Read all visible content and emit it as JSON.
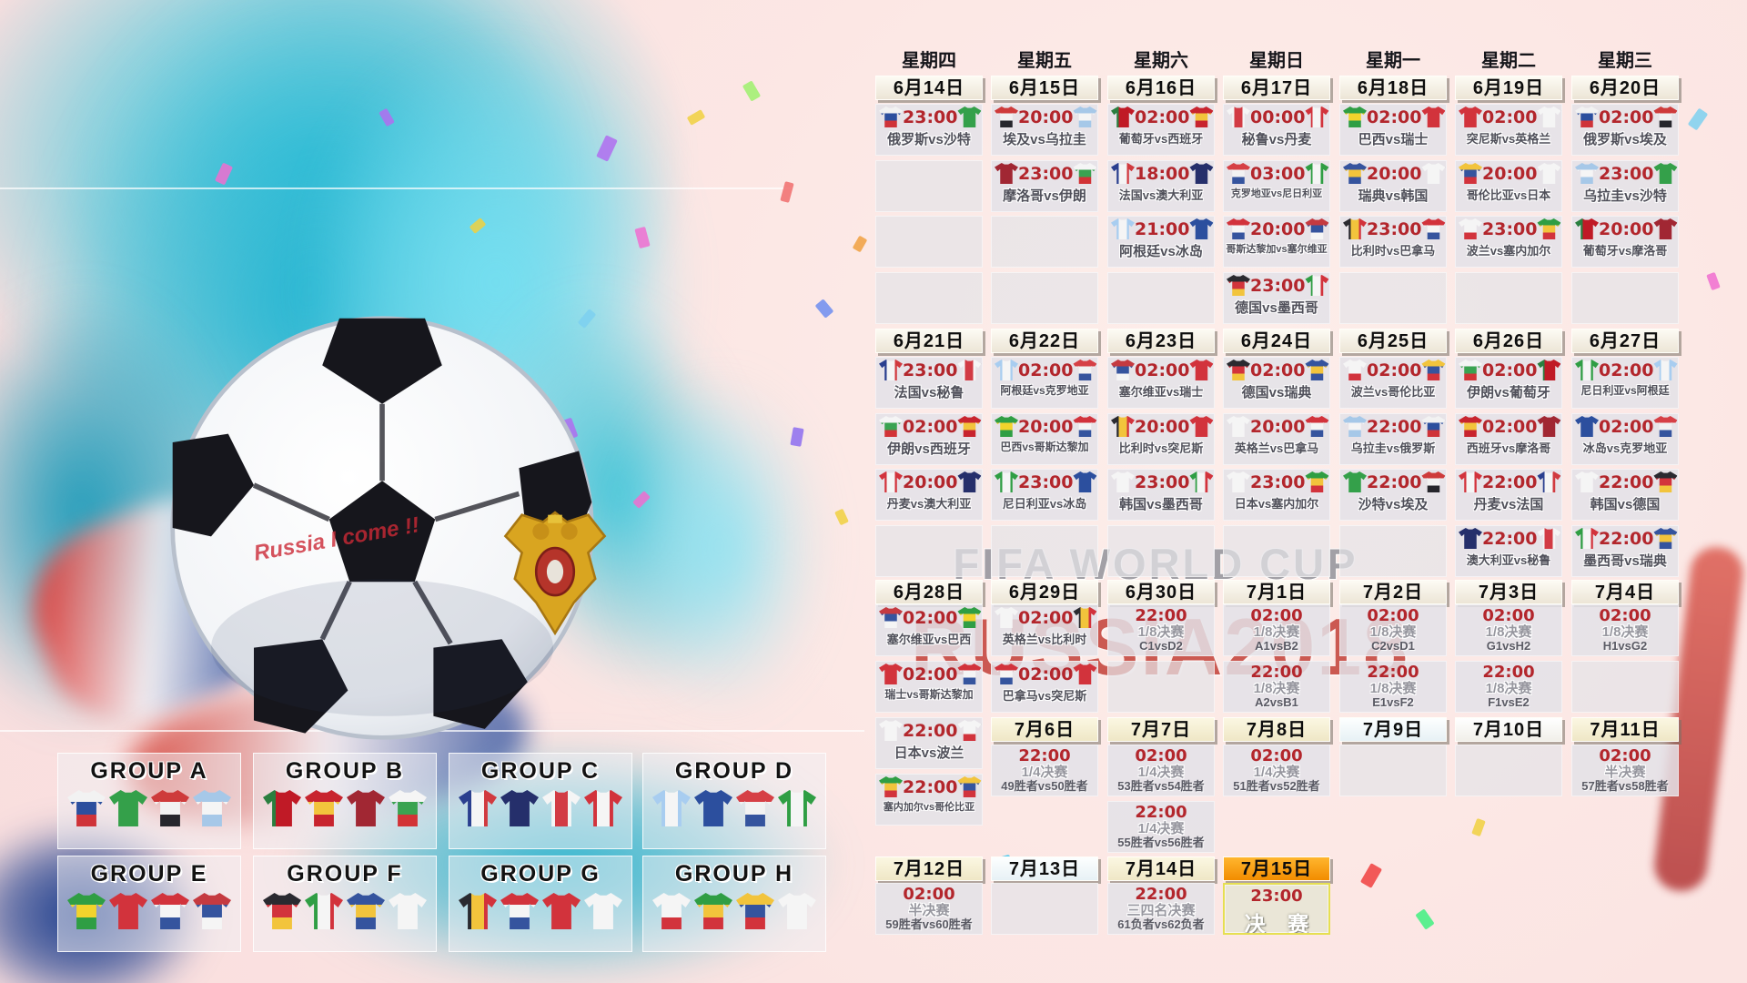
{
  "watermarks": {
    "title": "FIFA WORLD CUP",
    "russia": "RUSSIA2018"
  },
  "art": {
    "scribble": "Russia I come !!"
  },
  "teams": {
    "俄罗斯": {
      "d": "v",
      "c": [
        "#f2f2f2",
        "#2c4f9e",
        "#cf3339"
      ]
    },
    "沙特": {
      "d": "v",
      "c": [
        "#34a04a"
      ]
    },
    "埃及": {
      "d": "v",
      "c": [
        "#ce3b3b",
        "#f2f2f2",
        "#26262c"
      ]
    },
    "乌拉圭": {
      "d": "v",
      "c": [
        "#a6c8e8",
        "#f5f5f5",
        "#a6c8e8"
      ]
    },
    "摩洛哥": {
      "d": "v",
      "c": [
        "#a12733"
      ]
    },
    "伊朗": {
      "d": "v",
      "c": [
        "#f5f5f5",
        "#3aa351",
        "#d23336"
      ]
    },
    "葡萄牙": {
      "d": "h",
      "c": [
        "#2a7f3f",
        "#c01a26",
        "#c01a26"
      ]
    },
    "西班牙": {
      "d": "v",
      "c": [
        "#c8242e",
        "#f2c43c",
        "#c8242e"
      ]
    },
    "法国": {
      "d": "h",
      "c": [
        "#2a3f8f",
        "#f5f5f5",
        "#d13a3f"
      ]
    },
    "澳大利亚": {
      "d": "v",
      "c": [
        "#252f6b"
      ]
    },
    "秘鲁": {
      "d": "h",
      "c": [
        "#f5f5f5",
        "#d23b44",
        "#f5f5f5"
      ]
    },
    "丹麦": {
      "d": "h",
      "c": [
        "#d2333c",
        "#f5f5f5",
        "#d2333c"
      ]
    },
    "阿根廷": {
      "d": "h",
      "c": [
        "#a8cdf0",
        "#f5f5f5",
        "#a8cdf0"
      ]
    },
    "冰岛": {
      "d": "v",
      "c": [
        "#2c4f9e"
      ]
    },
    "克罗地亚": {
      "d": "v",
      "c": [
        "#d64046",
        "#f2f2f2",
        "#35549e"
      ]
    },
    "尼日利亚": {
      "d": "h",
      "c": [
        "#2f9e44",
        "#f5f5f5",
        "#2f9e44"
      ]
    },
    "巴西": {
      "d": "v",
      "c": [
        "#2f9e44",
        "#f2d32c",
        "#2f9e44"
      ]
    },
    "瑞士": {
      "d": "v",
      "c": [
        "#d2333c"
      ]
    },
    "哥斯达黎加": {
      "d": "v",
      "c": [
        "#d2333c",
        "#f5f5f5",
        "#35549e"
      ]
    },
    "塞尔维亚": {
      "d": "v",
      "c": [
        "#c53a40",
        "#35549e",
        "#f5f5f5"
      ]
    },
    "德国": {
      "d": "v",
      "c": [
        "#2a2a30",
        "#d2333c",
        "#f2c43c"
      ]
    },
    "墨西哥": {
      "d": "h",
      "c": [
        "#2f9e44",
        "#f5f5f5",
        "#d2333c"
      ]
    },
    "瑞典": {
      "d": "v",
      "c": [
        "#35549e",
        "#f2c43c",
        "#35549e"
      ]
    },
    "韩国": {
      "d": "v",
      "c": [
        "#f5f5f5"
      ]
    },
    "比利时": {
      "d": "h",
      "c": [
        "#2a2a30",
        "#f2c43c",
        "#d2333c"
      ]
    },
    "巴拿马": {
      "d": "v",
      "c": [
        "#d2333c",
        "#f5f5f5",
        "#35549e"
      ]
    },
    "突尼斯": {
      "d": "v",
      "c": [
        "#d2333c"
      ]
    },
    "英格兰": {
      "d": "v",
      "c": [
        "#f5f5f5"
      ]
    },
    "哥伦比亚": {
      "d": "v",
      "c": [
        "#f2c43c",
        "#35549e",
        "#d2333c"
      ]
    },
    "日本": {
      "d": "v",
      "c": [
        "#f5f5f5"
      ]
    },
    "波兰": {
      "d": "v",
      "c": [
        "#f5f5f5",
        "#f5f5f5",
        "#d2333c"
      ]
    },
    "塞内加尔": {
      "d": "v",
      "c": [
        "#2f9e44",
        "#f2c43c",
        "#d2333c"
      ]
    }
  },
  "calendar": {
    "weekdays": [
      "星期四",
      "星期五",
      "星期六",
      "星期日",
      "星期一",
      "星期二",
      "星期三"
    ],
    "block1": {
      "dates": [
        "6月14日",
        "6月15日",
        "6月16日",
        "6月17日",
        "6月18日",
        "6月19日",
        "6月20日"
      ],
      "cols": [
        [
          {
            "t": "m",
            "time": "23:00",
            "h": "俄罗斯",
            "a": "沙特"
          },
          {
            "t": "e"
          },
          {
            "t": "e"
          },
          {
            "t": "e"
          }
        ],
        [
          {
            "t": "m",
            "time": "20:00",
            "h": "埃及",
            "a": "乌拉圭"
          },
          {
            "t": "m",
            "time": "23:00",
            "h": "摩洛哥",
            "a": "伊朗"
          },
          {
            "t": "e"
          },
          {
            "t": "e"
          }
        ],
        [
          {
            "t": "m",
            "time": "02:00",
            "h": "葡萄牙",
            "a": "西班牙"
          },
          {
            "t": "m",
            "time": "18:00",
            "h": "法国",
            "a": "澳大利亚"
          },
          {
            "t": "m",
            "time": "21:00",
            "h": "阿根廷",
            "a": "冰岛"
          },
          {
            "t": "e"
          }
        ],
        [
          {
            "t": "m",
            "time": "00:00",
            "h": "秘鲁",
            "a": "丹麦"
          },
          {
            "t": "m",
            "time": "03:00",
            "h": "克罗地亚",
            "a": "尼日利亚"
          },
          {
            "t": "m",
            "time": "20:00",
            "h": "哥斯达黎加",
            "a": "塞尔维亚"
          },
          {
            "t": "m",
            "time": "23:00",
            "h": "德国",
            "a": "墨西哥"
          }
        ],
        [
          {
            "t": "m",
            "time": "02:00",
            "h": "巴西",
            "a": "瑞士"
          },
          {
            "t": "m",
            "time": "20:00",
            "h": "瑞典",
            "a": "韩国"
          },
          {
            "t": "m",
            "time": "23:00",
            "h": "比利时",
            "a": "巴拿马"
          },
          {
            "t": "e"
          }
        ],
        [
          {
            "t": "m",
            "time": "02:00",
            "h": "突尼斯",
            "a": "英格兰"
          },
          {
            "t": "m",
            "time": "20:00",
            "h": "哥伦比亚",
            "a": "日本"
          },
          {
            "t": "m",
            "time": "23:00",
            "h": "波兰",
            "a": "塞内加尔"
          },
          {
            "t": "e"
          }
        ],
        [
          {
            "t": "m",
            "time": "02:00",
            "h": "俄罗斯",
            "a": "埃及"
          },
          {
            "t": "m",
            "time": "23:00",
            "h": "乌拉圭",
            "a": "沙特"
          },
          {
            "t": "m",
            "time": "20:00",
            "h": "葡萄牙",
            "a": "摩洛哥"
          },
          {
            "t": "e"
          }
        ]
      ]
    },
    "block2": {
      "dates": [
        "6月21日",
        "6月22日",
        "6月23日",
        "6月24日",
        "6月25日",
        "6月26日",
        "6月27日"
      ],
      "cols": [
        [
          {
            "t": "m",
            "time": "23:00",
            "h": "法国",
            "a": "秘鲁"
          },
          {
            "t": "m",
            "time": "02:00",
            "h": "伊朗",
            "a": "西班牙"
          },
          {
            "t": "m",
            "time": "20:00",
            "h": "丹麦",
            "a": "澳大利亚"
          },
          {
            "t": "e"
          }
        ],
        [
          {
            "t": "m",
            "time": "02:00",
            "h": "阿根廷",
            "a": "克罗地亚"
          },
          {
            "t": "m",
            "time": "20:00",
            "h": "巴西",
            "a": "哥斯达黎加"
          },
          {
            "t": "m",
            "time": "23:00",
            "h": "尼日利亚",
            "a": "冰岛"
          },
          {
            "t": "e"
          }
        ],
        [
          {
            "t": "m",
            "time": "02:00",
            "h": "塞尔维亚",
            "a": "瑞士"
          },
          {
            "t": "m",
            "time": "20:00",
            "h": "比利时",
            "a": "突尼斯"
          },
          {
            "t": "m",
            "time": "23:00",
            "h": "韩国",
            "a": "墨西哥"
          },
          {
            "t": "e"
          }
        ],
        [
          {
            "t": "m",
            "time": "02:00",
            "h": "德国",
            "a": "瑞典"
          },
          {
            "t": "m",
            "time": "20:00",
            "h": "英格兰",
            "a": "巴拿马"
          },
          {
            "t": "m",
            "time": "23:00",
            "h": "日本",
            "a": "塞内加尔"
          },
          {
            "t": "e"
          }
        ],
        [
          {
            "t": "m",
            "time": "02:00",
            "h": "波兰",
            "a": "哥伦比亚"
          },
          {
            "t": "m",
            "time": "22:00",
            "h": "乌拉圭",
            "a": "俄罗斯"
          },
          {
            "t": "m",
            "time": "22:00",
            "h": "沙特",
            "a": "埃及"
          },
          {
            "t": "e"
          }
        ],
        [
          {
            "t": "m",
            "time": "02:00",
            "h": "伊朗",
            "a": "葡萄牙"
          },
          {
            "t": "m",
            "time": "02:00",
            "h": "西班牙",
            "a": "摩洛哥"
          },
          {
            "t": "m",
            "time": "22:00",
            "h": "丹麦",
            "a": "法国"
          },
          {
            "t": "m",
            "time": "22:00",
            "h": "澳大利亚",
            "a": "秘鲁"
          }
        ],
        [
          {
            "t": "m",
            "time": "02:00",
            "h": "尼日利亚",
            "a": "阿根廷"
          },
          {
            "t": "m",
            "time": "02:00",
            "h": "冰岛",
            "a": "克罗地亚"
          },
          {
            "t": "m",
            "time": "22:00",
            "h": "韩国",
            "a": "德国"
          },
          {
            "t": "m",
            "time": "22:00",
            "h": "墨西哥",
            "a": "瑞典"
          }
        ]
      ]
    },
    "block3": {
      "dates": [
        "6月28日",
        "6月29日",
        "6月30日",
        "7月1日",
        "7月2日",
        "7月3日",
        "7月4日"
      ],
      "cols": [
        [
          {
            "t": "m",
            "time": "02:00",
            "h": "塞尔维亚",
            "a": "巴西"
          },
          {
            "t": "m",
            "time": "02:00",
            "h": "瑞士",
            "a": "哥斯达黎加"
          }
        ],
        [
          {
            "t": "m",
            "time": "02:00",
            "h": "英格兰",
            "a": "比利时"
          },
          {
            "t": "m",
            "time": "02:00",
            "h": "巴拿马",
            "a": "突尼斯"
          }
        ],
        [
          {
            "t": "s",
            "time": "22:00",
            "stage": "1/8决赛",
            "pair": "C1vsD2"
          },
          {
            "t": "e"
          }
        ],
        [
          {
            "t": "s",
            "time": "02:00",
            "stage": "1/8决赛",
            "pair": "A1vsB2"
          },
          {
            "t": "s",
            "time": "22:00",
            "stage": "1/8决赛",
            "pair": "A2vsB1"
          }
        ],
        [
          {
            "t": "s",
            "time": "02:00",
            "stage": "1/8决赛",
            "pair": "C2vsD1"
          },
          {
            "t": "s",
            "time": "22:00",
            "stage": "1/8决赛",
            "pair": "E1vsF2"
          }
        ],
        [
          {
            "t": "s",
            "time": "02:00",
            "stage": "1/8决赛",
            "pair": "G1vsH2"
          },
          {
            "t": "s",
            "time": "22:00",
            "stage": "1/8决赛",
            "pair": "F1vsE2"
          }
        ],
        [
          {
            "t": "s",
            "time": "02:00",
            "stage": "1/8决赛",
            "pair": "H1vsG2"
          },
          {
            "t": "e"
          }
        ]
      ]
    },
    "col1_extra": [
      {
        "t": "m",
        "time": "22:00",
        "h": "日本",
        "a": "波兰"
      },
      {
        "t": "m",
        "time": "22:00",
        "h": "塞内加尔",
        "a": "哥伦比亚"
      }
    ],
    "block4": {
      "dates": [
        "7月6日",
        "7月7日",
        "7月8日",
        "7月9日",
        "7月10日",
        "7月11日"
      ],
      "tones": [
        "c",
        "c",
        "c",
        "b",
        "w",
        "c"
      ],
      "cols": [
        [
          {
            "t": "s",
            "time": "22:00",
            "stage": "1/4决赛",
            "pair": "49胜者vs50胜者"
          },
          null
        ],
        [
          {
            "t": "s",
            "time": "02:00",
            "stage": "1/4决赛",
            "pair": "53胜者vs54胜者"
          },
          {
            "t": "s",
            "time": "22:00",
            "stage": "1/4决赛",
            "pair": "55胜者vs56胜者"
          }
        ],
        [
          {
            "t": "s",
            "time": "02:00",
            "stage": "1/4决赛",
            "pair": "51胜者vs52胜者"
          },
          null
        ],
        [
          {
            "t": "e"
          },
          null
        ],
        [
          {
            "t": "e"
          },
          null
        ],
        [
          {
            "t": "s",
            "time": "02:00",
            "stage": "半决赛",
            "pair": "57胜者vs58胜者"
          },
          null
        ]
      ]
    },
    "block5": {
      "dates": [
        "7月12日",
        "7月13日",
        "7月14日",
        "7月15日"
      ],
      "tones": [
        "c",
        "b",
        "c",
        "o"
      ],
      "cols": [
        [
          {
            "t": "s",
            "time": "02:00",
            "stage": "半决赛",
            "pair": "59胜者vs60胜者"
          }
        ],
        [
          {
            "t": "e"
          }
        ],
        [
          {
            "t": "s",
            "time": "22:00",
            "stage": "三四名决赛",
            "pair": "61负者vs62负者"
          }
        ],
        [
          {
            "t": "f",
            "time": "23:00",
            "stage": "决 赛"
          }
        ]
      ]
    }
  },
  "groups": [
    {
      "label": "GROUP A",
      "teams": [
        "俄罗斯",
        "沙特",
        "埃及",
        "乌拉圭"
      ]
    },
    {
      "label": "GROUP B",
      "teams": [
        "葡萄牙",
        "西班牙",
        "摩洛哥",
        "伊朗"
      ]
    },
    {
      "label": "GROUP C",
      "teams": [
        "法国",
        "澳大利亚",
        "秘鲁",
        "丹麦"
      ]
    },
    {
      "label": "GROUP D",
      "teams": [
        "阿根廷",
        "冰岛",
        "克罗地亚",
        "尼日利亚"
      ]
    },
    {
      "label": "GROUP E",
      "teams": [
        "巴西",
        "瑞士",
        "哥斯达黎加",
        "塞尔维亚"
      ]
    },
    {
      "label": "GROUP F",
      "teams": [
        "德国",
        "墨西哥",
        "瑞典",
        "韩国"
      ]
    },
    {
      "label": "GROUP G",
      "teams": [
        "比利时",
        "巴拿马",
        "突尼斯",
        "英格兰"
      ]
    },
    {
      "label": "GROUP H",
      "teams": [
        "波兰",
        "塞内加尔",
        "哥伦比亚",
        "日本"
      ]
    }
  ]
}
